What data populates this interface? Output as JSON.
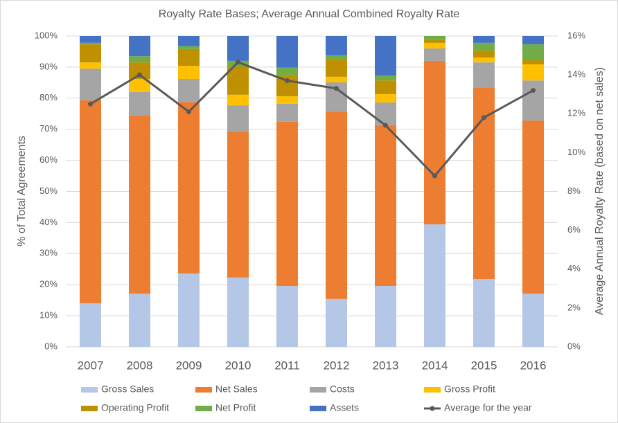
{
  "chart_data": {
    "type": "bar",
    "stacked": true,
    "title": "Royalty Rate Bases; Average Annual Combined Royalty Rate",
    "ylabel": "% of Total Agreements",
    "y2label": "Average Annual Royalty Rate (based on net sales)",
    "categories": [
      "2007",
      "2008",
      "2009",
      "2010",
      "2011",
      "2012",
      "2013",
      "2014",
      "2015",
      "2016"
    ],
    "series": [
      {
        "name": "Gross Sales",
        "color": "#b4c7e7",
        "values": [
          14,
          17.1,
          23.6,
          22.3,
          19.6,
          15.4,
          19.6,
          39.4,
          21.8,
          17.1
        ]
      },
      {
        "name": "Net Sales",
        "color": "#ed7d31",
        "values": [
          65.3,
          57.3,
          55.2,
          47,
          52.8,
          60.3,
          51.7,
          52.6,
          61.5,
          55.7
        ]
      },
      {
        "name": "Costs",
        "color": "#a5a5a5",
        "values": [
          10.2,
          7.6,
          7.4,
          8.4,
          5.8,
          9.4,
          7.3,
          4,
          8.2,
          12.9
        ]
      },
      {
        "name": "Gross Profit",
        "color": "#ffc000",
        "values": [
          2,
          4.2,
          4.2,
          3.4,
          2.4,
          1.8,
          2.7,
          1.8,
          1.6,
          5.2
        ]
      },
      {
        "name": "Operating Profit",
        "color": "#bf9000",
        "values": [
          5.8,
          5.3,
          5.4,
          9.1,
          6.9,
          5.5,
          4.4,
          0.9,
          2.2,
          1.3
        ]
      },
      {
        "name": "Net Profit",
        "color": "#70ad47",
        "values": [
          0.5,
          2,
          0.9,
          1.8,
          2.3,
          1.4,
          1.6,
          1.3,
          2.5,
          5.1
        ]
      },
      {
        "name": "Assets",
        "color": "#4472c4",
        "values": [
          2.2,
          6.5,
          3.3,
          8,
          10.2,
          6.2,
          12.7,
          0,
          2.2,
          2.7
        ]
      },
      {
        "name": "Average for the year",
        "color": "#595959",
        "type": "line",
        "axis": "y2",
        "values": [
          12.5,
          14.0,
          12.1,
          14.65,
          13.7,
          13.3,
          11.4,
          8.8,
          11.8,
          13.2
        ]
      }
    ],
    "ylim": [
      0,
      100
    ],
    "yticks": [
      {
        "value": 0,
        "label": "0%"
      },
      {
        "value": 10,
        "label": "10%"
      },
      {
        "value": 20,
        "label": "20%"
      },
      {
        "value": 30,
        "label": "30%"
      },
      {
        "value": 40,
        "label": "40%"
      },
      {
        "value": 50,
        "label": "50%"
      },
      {
        "value": 60,
        "label": "60%"
      },
      {
        "value": 70,
        "label": "70%"
      },
      {
        "value": 80,
        "label": "80%"
      },
      {
        "value": 90,
        "label": "90%"
      },
      {
        "value": 100,
        "label": "100%"
      }
    ],
    "y2lim": [
      0,
      16
    ],
    "y2ticks": [
      {
        "value": 0,
        "label": "0%"
      },
      {
        "value": 2,
        "label": "2%"
      },
      {
        "value": 4,
        "label": "4%"
      },
      {
        "value": 6,
        "label": "6%"
      },
      {
        "value": 8,
        "label": "8%"
      },
      {
        "value": 10,
        "label": "10%"
      },
      {
        "value": 12,
        "label": "12%"
      },
      {
        "value": 14,
        "label": "14%"
      },
      {
        "value": 16,
        "label": "16%"
      }
    ],
    "grid": true,
    "legend": "bottom"
  }
}
